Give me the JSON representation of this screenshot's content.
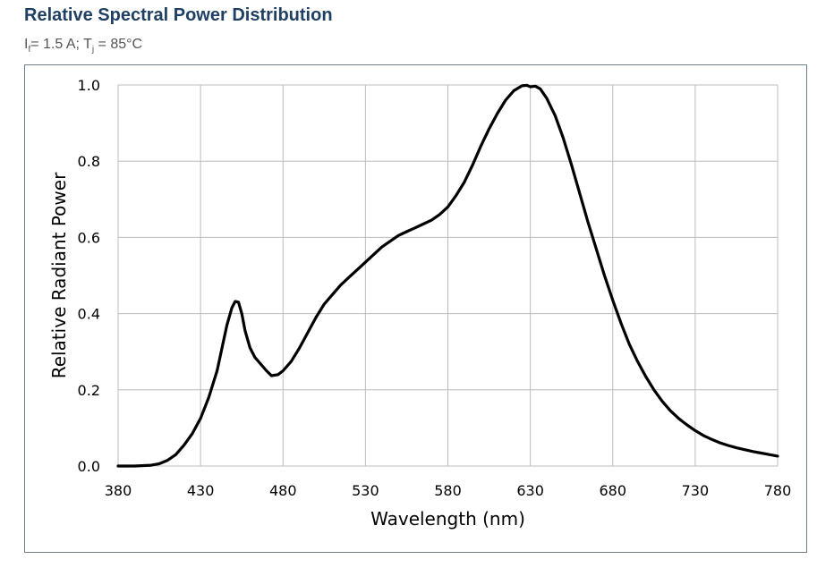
{
  "header": {
    "title": "Relative Spectral Power Distribution",
    "cond_if_main": "I",
    "cond_if_sub": "f",
    "cond_if_rest": "= 1.5 A; T",
    "cond_tj_sub": "j",
    "cond_tj_rest": " = 85°C"
  },
  "colors": {
    "title": "#1f3f63",
    "subtitle": "#555555",
    "frame": "#6f7f8c",
    "grid": "#bcbcbc",
    "line": "#000000"
  },
  "chart_data": {
    "type": "line",
    "title": "Relative Spectral Power Distribution",
    "xlabel": "Wavelength (nm)",
    "ylabel": "Relative Radiant Power",
    "xlim": [
      380,
      780
    ],
    "ylim": [
      0,
      1.0
    ],
    "xticks": [
      380,
      430,
      480,
      530,
      580,
      630,
      680,
      730,
      780
    ],
    "yticks": [
      0.0,
      0.2,
      0.4,
      0.6,
      0.8,
      1.0
    ],
    "ytick_labels": [
      "0.0",
      "0.2",
      "0.4",
      "0.6",
      "0.8",
      "1.0"
    ],
    "grid": true,
    "legend": "none",
    "series": [
      {
        "x": [
          380,
          390,
          400,
          405,
          410,
          415,
          420,
          425,
          430,
          435,
          440,
          443,
          446,
          449,
          451,
          453,
          455,
          457,
          460,
          463,
          466,
          470,
          473,
          477,
          480,
          485,
          490,
          495,
          500,
          505,
          510,
          515,
          520,
          525,
          530,
          535,
          540,
          545,
          550,
          555,
          560,
          565,
          570,
          575,
          580,
          585,
          590,
          595,
          600,
          605,
          610,
          615,
          620,
          625,
          628,
          630,
          633,
          636,
          640,
          645,
          650,
          655,
          660,
          665,
          670,
          675,
          680,
          685,
          690,
          695,
          700,
          705,
          710,
          715,
          720,
          725,
          730,
          735,
          740,
          745,
          750,
          755,
          760,
          765,
          770,
          775,
          780
        ],
        "values": [
          0.0,
          0.0,
          0.002,
          0.006,
          0.015,
          0.03,
          0.055,
          0.085,
          0.125,
          0.18,
          0.25,
          0.31,
          0.37,
          0.415,
          0.432,
          0.43,
          0.4,
          0.355,
          0.31,
          0.285,
          0.27,
          0.25,
          0.237,
          0.24,
          0.25,
          0.275,
          0.31,
          0.35,
          0.39,
          0.425,
          0.45,
          0.475,
          0.495,
          0.515,
          0.535,
          0.555,
          0.575,
          0.59,
          0.605,
          0.615,
          0.625,
          0.635,
          0.645,
          0.66,
          0.68,
          0.71,
          0.745,
          0.79,
          0.84,
          0.885,
          0.925,
          0.96,
          0.985,
          0.998,
          0.999,
          0.995,
          0.997,
          0.99,
          0.965,
          0.92,
          0.86,
          0.79,
          0.715,
          0.64,
          0.57,
          0.5,
          0.435,
          0.375,
          0.32,
          0.275,
          0.235,
          0.2,
          0.17,
          0.145,
          0.125,
          0.108,
          0.093,
          0.08,
          0.07,
          0.061,
          0.054,
          0.048,
          0.043,
          0.038,
          0.034,
          0.03,
          0.026
        ]
      }
    ]
  }
}
